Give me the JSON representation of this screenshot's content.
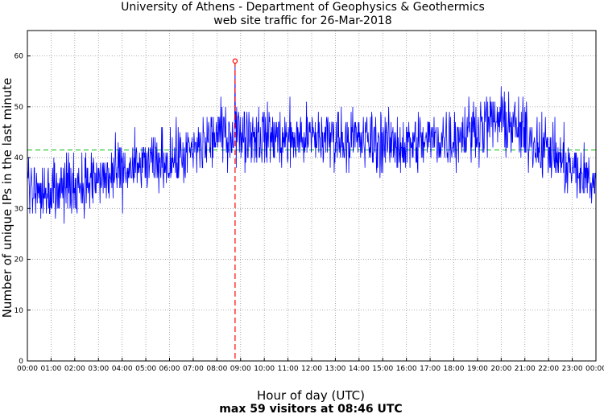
{
  "chart_data": {
    "type": "line",
    "title": "University of Athens - Department of Geophysics & Geothermics",
    "subtitle": "web site traffic for 26-Mar-2018",
    "xlabel": "Hour of day (UTC)",
    "ylabel": "Number of unique IPs in the last minute",
    "footer": "max 59 visitors at 08:46 UTC",
    "xlim": [
      0,
      24
    ],
    "ylim": [
      0,
      65
    ],
    "x_ticks": [
      "00:00",
      "01:00",
      "02:00",
      "03:00",
      "04:00",
      "05:00",
      "06:00",
      "07:00",
      "08:00",
      "09:00",
      "10:00",
      "11:00",
      "12:00",
      "13:00",
      "14:00",
      "15:00",
      "16:00",
      "17:00",
      "18:00",
      "19:00",
      "20:00",
      "21:00",
      "22:00",
      "23:00",
      "00:00"
    ],
    "y_ticks": [
      0,
      10,
      20,
      30,
      40,
      50,
      60
    ],
    "grid": true,
    "mean_line": 41.5,
    "max_point": {
      "time": "08:46",
      "hour": 8.767,
      "value": 59
    },
    "hourly_trend": [
      {
        "hour": 0,
        "value": 34
      },
      {
        "hour": 1,
        "value": 34
      },
      {
        "hour": 2,
        "value": 34.5
      },
      {
        "hour": 3,
        "value": 35.5
      },
      {
        "hour": 4,
        "value": 37
      },
      {
        "hour": 5,
        "value": 38.5
      },
      {
        "hour": 6,
        "value": 39.5
      },
      {
        "hour": 7,
        "value": 41
      },
      {
        "hour": 8,
        "value": 44.5
      },
      {
        "hour": 9,
        "value": 45
      },
      {
        "hour": 10,
        "value": 44.5
      },
      {
        "hour": 11,
        "value": 43.5
      },
      {
        "hour": 12,
        "value": 44
      },
      {
        "hour": 13,
        "value": 44
      },
      {
        "hour": 14,
        "value": 43.5
      },
      {
        "hour": 15,
        "value": 43
      },
      {
        "hour": 16,
        "value": 42.5
      },
      {
        "hour": 17,
        "value": 43.5
      },
      {
        "hour": 18,
        "value": 44
      },
      {
        "hour": 19,
        "value": 46
      },
      {
        "hour": 20,
        "value": 47.5
      },
      {
        "hour": 21,
        "value": 44.5
      },
      {
        "hour": 22,
        "value": 41.5
      },
      {
        "hour": 23,
        "value": 37.5
      },
      {
        "hour": 24,
        "value": 35
      }
    ],
    "series_color": "#0000ff",
    "mean_color": "#00c000",
    "max_color": "#ff0000"
  }
}
